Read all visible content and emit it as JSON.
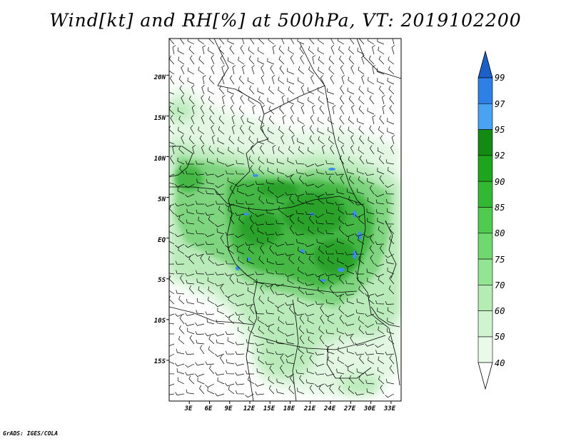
{
  "title": "Wind[kt] and RH[%] at 500hPa, VT: 2019102200",
  "footer": "GrADS: IGES/COLA",
  "map": {
    "lat_labels": [
      "20N",
      "15N",
      "10N",
      "5N",
      "EQ",
      "5S",
      "10S",
      "15S"
    ],
    "lat_values": [
      20,
      15,
      10,
      5,
      0,
      -5,
      -10,
      -15
    ],
    "lon_labels": [
      "3E",
      "6E",
      "9E",
      "12E",
      "15E",
      "18E",
      "21E",
      "24E",
      "27E",
      "30E",
      "33E"
    ],
    "lon_values": [
      3,
      6,
      9,
      12,
      15,
      18,
      21,
      24,
      27,
      30,
      33
    ],
    "lat_range": [
      -20,
      24.5
    ],
    "lon_range": [
      0,
      34.5
    ]
  },
  "colorbar": {
    "levels": [
      "99",
      "97",
      "95",
      "92",
      "90",
      "85",
      "80",
      "75",
      "70",
      "60",
      "50",
      "40"
    ],
    "colors": [
      "#1d5fc8",
      "#2e7fe6",
      "#4aa3f2",
      "#138a13",
      "#1ea51e",
      "#33b833",
      "#4fcb4f",
      "#6fd96f",
      "#93e493",
      "#b4ecb4",
      "#d0f3d0",
      "#e9fae9"
    ],
    "top_arrow_color": "#1d5fc8",
    "bottom_arrow_color": "#ffffff"
  },
  "colors": {
    "rh_light": "#e3f7e3",
    "rh_mid": "#8fdc8f",
    "rh_dark": "#3fb43f",
    "rh_deep": "#1e9a1e",
    "rh_blue": "#3c8ee8",
    "frame": "#000000"
  }
}
